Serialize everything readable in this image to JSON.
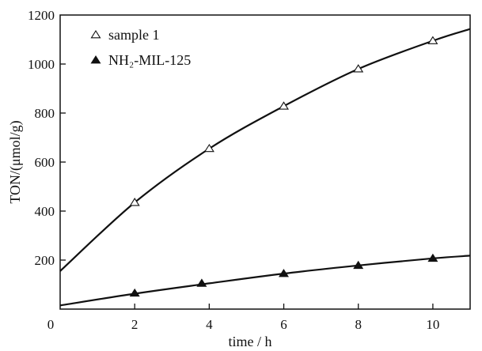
{
  "chart_data": {
    "type": "scatter",
    "xlabel": "time / h",
    "ylabel": "TON/(μmol/g)",
    "xlim": [
      0,
      11
    ],
    "ylim": [
      0,
      1200
    ],
    "xticks": [
      0,
      2,
      4,
      6,
      8,
      10
    ],
    "yticks": [
      200,
      400,
      600,
      800,
      1000,
      1200
    ],
    "y_origin_label": "0",
    "grid": false,
    "legend_position": "top-left",
    "series": [
      {
        "name": "sample 1",
        "marker": "open-triangle",
        "x": [
          2,
          4,
          6,
          8,
          10
        ],
        "y": [
          435,
          655,
          828,
          980,
          1095
        ],
        "fit_curve": {
          "x": [
            0,
            2,
            4,
            6,
            8,
            10,
            11
          ],
          "y": [
            155,
            435,
            655,
            828,
            980,
            1095,
            1143
          ]
        }
      },
      {
        "name": "NH₂-MIL-125",
        "marker": "filled-triangle",
        "x": [
          2,
          3.8,
          6,
          8,
          10
        ],
        "y": [
          65,
          105,
          145,
          178,
          207
        ],
        "fit_curve": {
          "x": [
            0,
            2,
            4,
            6,
            8,
            10,
            11
          ],
          "y": [
            15,
            63,
            105,
            145,
            178,
            207,
            218
          ]
        }
      }
    ]
  }
}
